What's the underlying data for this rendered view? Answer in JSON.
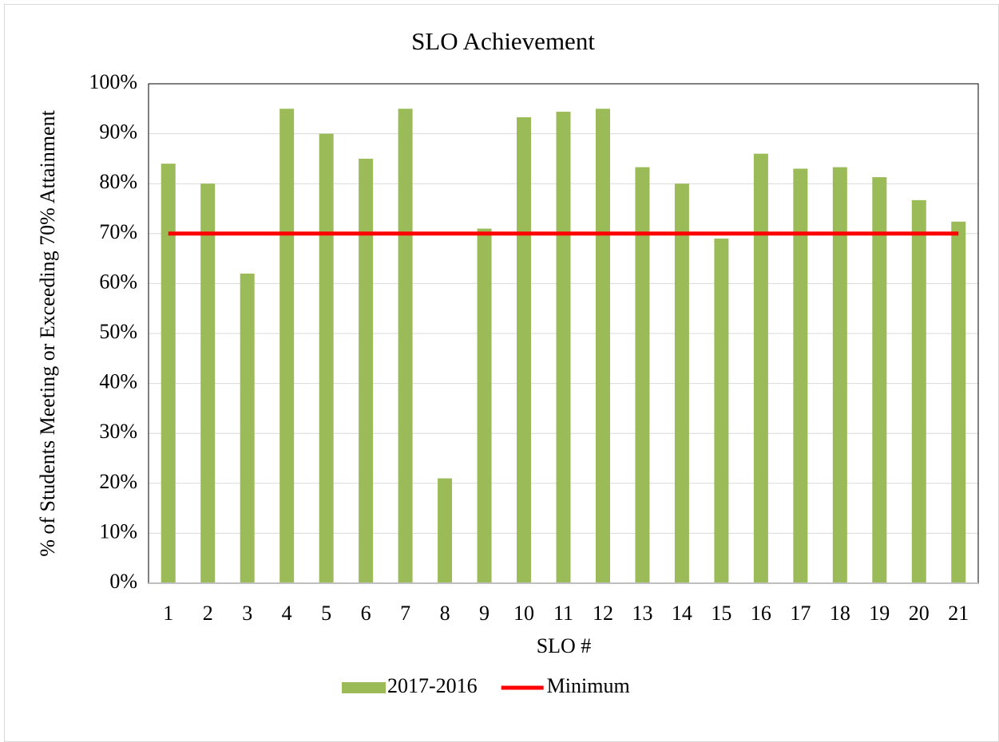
{
  "chart_data": {
    "type": "bar",
    "title": "SLO Achievement",
    "x_label": "SLO #",
    "y_label": "% of Students Meeting or Exceeding 70% Attainment",
    "categories": [
      "1",
      "2",
      "3",
      "4",
      "5",
      "6",
      "7",
      "8",
      "9",
      "10",
      "11",
      "12",
      "13",
      "14",
      "15",
      "16",
      "17",
      "18",
      "19",
      "20",
      "21"
    ],
    "series": [
      {
        "name": "2017-2016",
        "color": "#9bbb59",
        "type": "bar",
        "values": [
          84,
          80,
          62,
          95,
          90,
          85,
          95,
          21,
          71,
          93.3,
          94.4,
          95,
          83.3,
          80,
          69,
          86,
          83,
          83.3,
          81.3,
          76.7,
          72.4
        ]
      },
      {
        "name": "Minimum",
        "color": "#ff0000",
        "type": "line",
        "values": [
          70,
          70,
          70,
          70,
          70,
          70,
          70,
          70,
          70,
          70,
          70,
          70,
          70,
          70,
          70,
          70,
          70,
          70,
          70,
          70,
          70
        ]
      }
    ],
    "ylim": [
      0,
      100
    ],
    "yticks": [
      {
        "value": 0,
        "label": "0%"
      },
      {
        "value": 10,
        "label": "10%"
      },
      {
        "value": 20,
        "label": "20%"
      },
      {
        "value": 30,
        "label": "30%"
      },
      {
        "value": 40,
        "label": "40%"
      },
      {
        "value": 50,
        "label": "50%"
      },
      {
        "value": 60,
        "label": "60%"
      },
      {
        "value": 70,
        "label": "70%"
      },
      {
        "value": 80,
        "label": "80%"
      },
      {
        "value": 90,
        "label": "90%"
      },
      {
        "value": 100,
        "label": "100%"
      }
    ],
    "grid": true,
    "legend": "bottom"
  }
}
